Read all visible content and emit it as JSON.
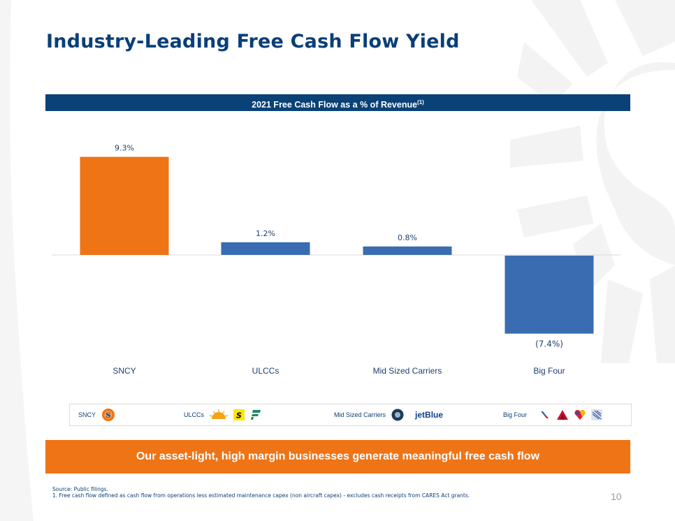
{
  "slide": {
    "title": "Industry-Leading Free Cash Flow Yield",
    "page_number": "10"
  },
  "chart_header": {
    "text": "2021 Free Cash Flow as a % of Revenue",
    "superscript": "(1)"
  },
  "chart_data": {
    "type": "bar",
    "title": "2021 Free Cash Flow as a % of Revenue(1)",
    "categories": [
      "SNCY",
      "ULCCs",
      "Mid Sized Carriers",
      "Big Four"
    ],
    "values": [
      9.3,
      1.2,
      0.8,
      -7.4
    ],
    "data_labels": [
      "9.3%",
      "1.2%",
      "0.8%",
      "(7.4%)"
    ],
    "colors": [
      "#ee7416",
      "#3a6cb2",
      "#3a6cb2",
      "#3a6cb2"
    ],
    "xlabel": "",
    "ylabel": "",
    "ylim": [
      -7.4,
      9.3
    ],
    "grid": false,
    "legend": "none"
  },
  "legend": {
    "groups": [
      {
        "label": "SNCY",
        "logos": [
          "sun-country-logo"
        ]
      },
      {
        "label": "ULCCs",
        "logos": [
          "allegiant-sun-logo",
          "spirit-logo",
          "frontier-logo"
        ]
      },
      {
        "label": "Mid Sized Carriers",
        "logos": [
          "alaska-logo",
          "jetblue-logo"
        ]
      },
      {
        "label": "Big Four",
        "logos": [
          "american-logo",
          "delta-logo",
          "southwest-logo",
          "united-logo"
        ]
      }
    ],
    "jetblue_text": "jetBlue"
  },
  "callout": {
    "text": "Our asset-light, high margin businesses generate meaningful free cash flow"
  },
  "footnotes": {
    "source": "Source: Public filings.",
    "note1": "1.  Free cash flow defined as cash flow from operations less estimated maintenance  capex (non aircraft capex) - excludes cash receipts from CARES Act grants."
  },
  "colors": {
    "navy": "#0a4278",
    "orange": "#ee7416",
    "bar_blue": "#3a6cb2"
  }
}
